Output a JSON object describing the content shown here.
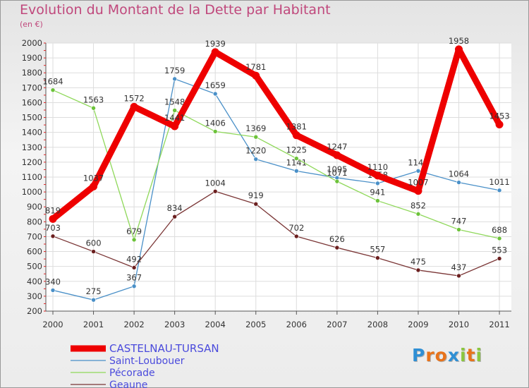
{
  "header": {
    "title": "Evolution du Montant de la Dette par Habitant",
    "unit": "(en €)"
  },
  "logo": {
    "text": "Proxiti",
    "letter_colors": [
      "#2f8fd4",
      "#e8731b",
      "#e8731b",
      "#2f8fd4",
      "#8cc63f",
      "#e8731b",
      "#8cc63f"
    ]
  },
  "chart_data": {
    "type": "line",
    "title": "Evolution du Montant de la Dette par Habitant",
    "subtitle": "(en €)",
    "xlabel": "",
    "ylabel": "",
    "x": [
      "2000",
      "2001",
      "2002",
      "2003",
      "2004",
      "2005",
      "2006",
      "2007",
      "2008",
      "2009",
      "2010",
      "2011"
    ],
    "ylim": [
      200,
      2000
    ],
    "yticks": [
      200,
      300,
      400,
      500,
      600,
      700,
      800,
      900,
      1000,
      1100,
      1200,
      1300,
      1400,
      1500,
      1600,
      1700,
      1800,
      1900,
      2000
    ],
    "grid": true,
    "legend_position": "bottom-left",
    "series": [
      {
        "name": "Saint-Loubouer",
        "color": "#4a90c8",
        "point_color": "#4a90c8",
        "values": [
          340,
          275,
          367,
          1759,
          1659,
          1220,
          1141,
          1095,
          1058,
          1141,
          1064,
          1011
        ]
      },
      {
        "name": "Pécorade",
        "color": "#8fd85a",
        "point_color": "#6cc23a",
        "values": [
          1684,
          1563,
          679,
          1548,
          1406,
          1369,
          1225,
          1071,
          941,
          852,
          747,
          688
        ]
      },
      {
        "name": "Geaune",
        "color": "#7a3535",
        "point_color": "#6b1f1f",
        "values": [
          703,
          600,
          492,
          834,
          1004,
          919,
          702,
          626,
          557,
          475,
          437,
          553
        ]
      },
      {
        "name": "CASTELNAU-TURSAN",
        "color": "#ee0000",
        "point_color": "#ee0000",
        "values": [
          819,
          1037,
          1572,
          1441,
          1939,
          1781,
          1381,
          1247,
          1110,
          1007,
          1958,
          1453
        ]
      }
    ],
    "legend_order": [
      "CASTELNAU-TURSAN",
      "Saint-Loubouer",
      "Pécorade",
      "Geaune"
    ],
    "legend_text_color": "#4a4adc"
  }
}
